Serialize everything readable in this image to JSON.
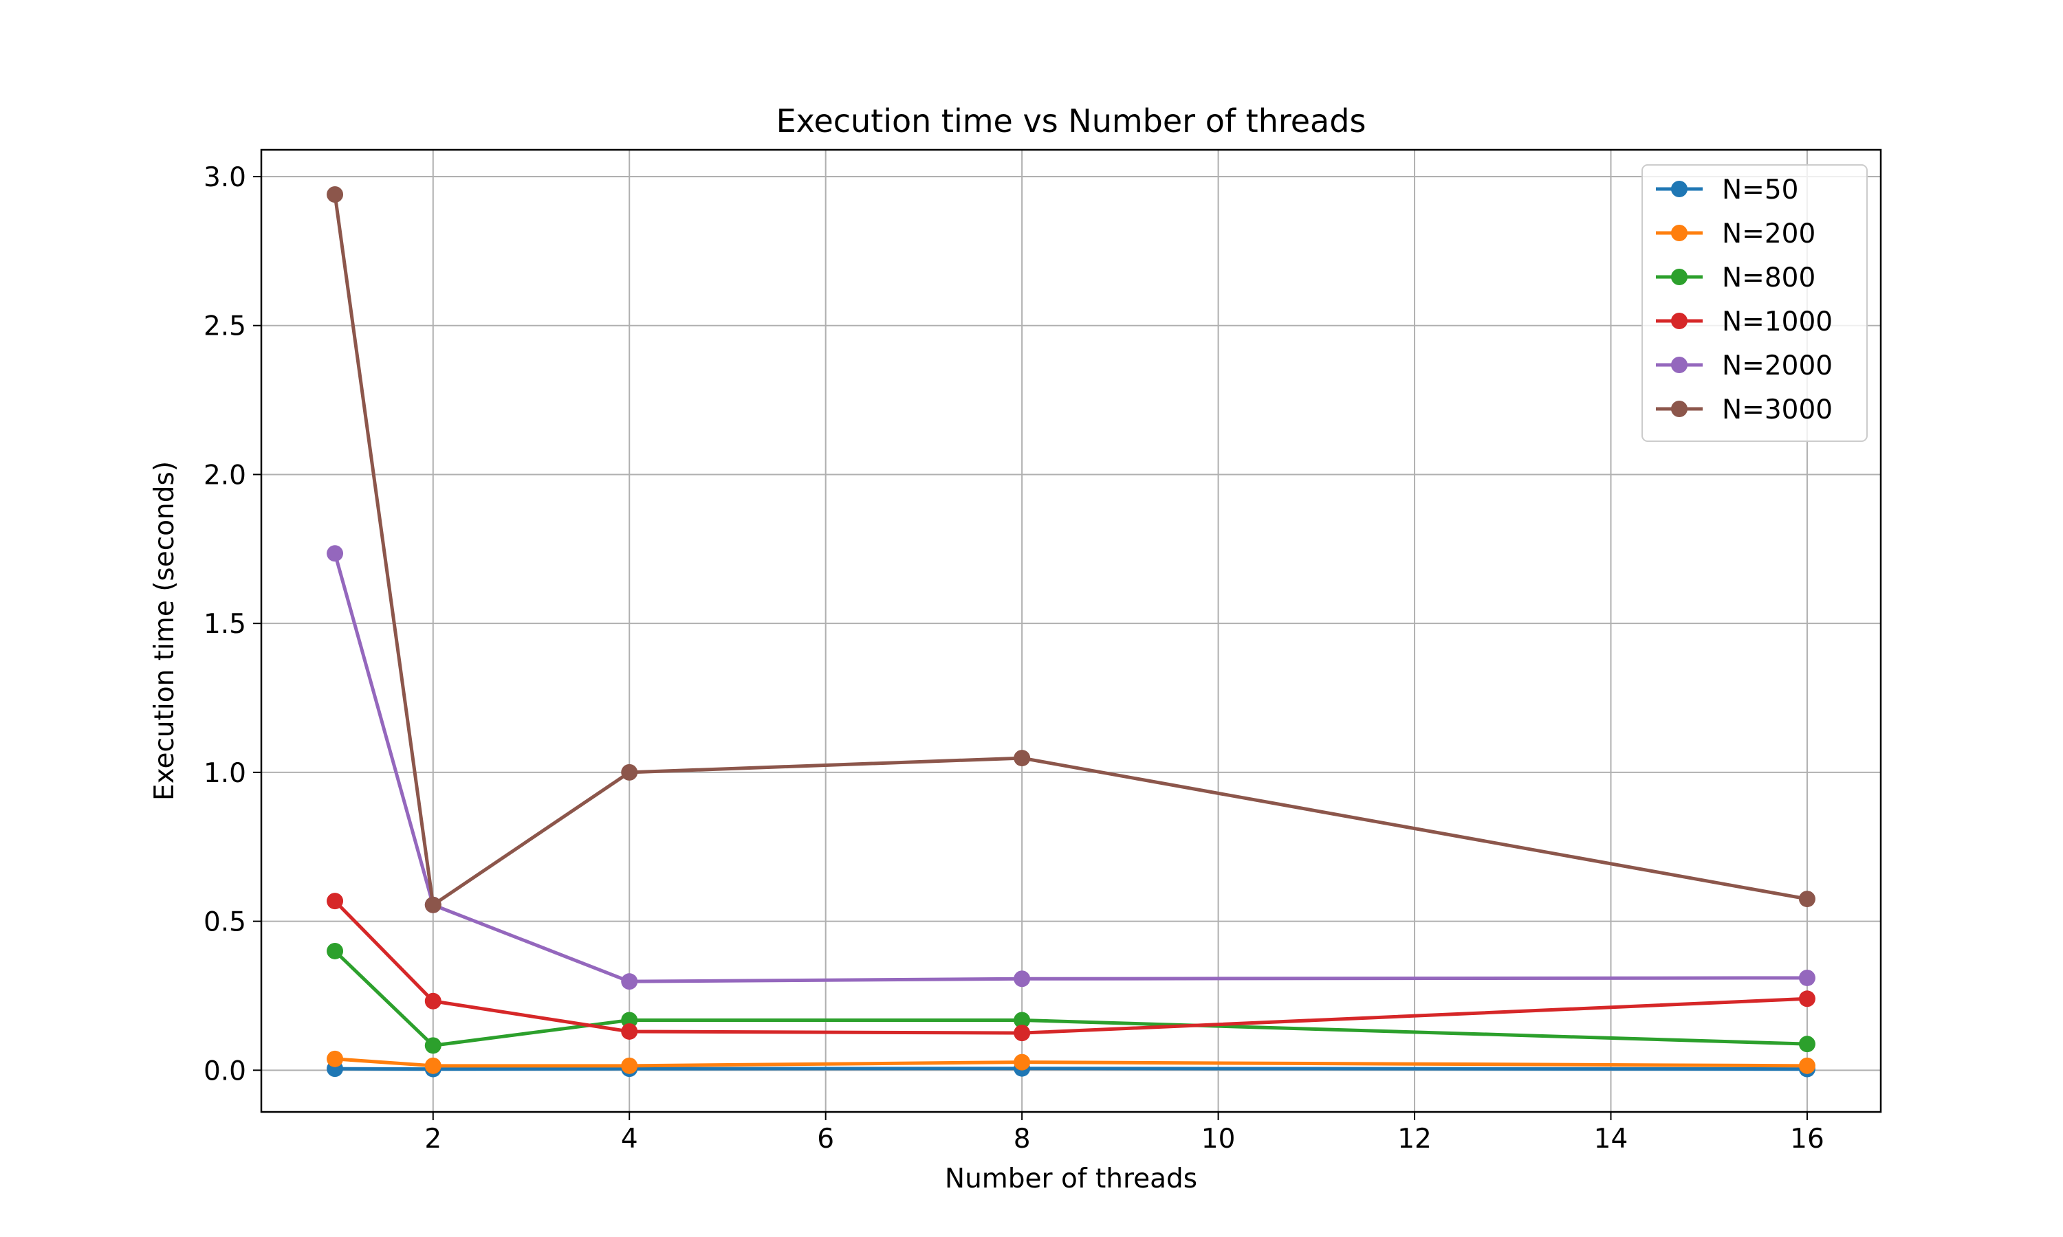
{
  "chart_data": {
    "type": "line",
    "title": "Execution time vs Number of threads",
    "xlabel": "Number of threads",
    "ylabel": "Execution time (seconds)",
    "xlim": [
      0.25,
      16.75
    ],
    "ylim": [
      -0.14,
      3.09
    ],
    "xticks": [
      2,
      4,
      6,
      8,
      10,
      12,
      14,
      16
    ],
    "yticks": [
      0.0,
      0.5,
      1.0,
      1.5,
      2.0,
      2.5,
      3.0
    ],
    "ytick_labels": [
      "0.0",
      "0.5",
      "1.0",
      "1.5",
      "2.0",
      "2.5",
      "3.0"
    ],
    "grid": true,
    "legend_position": "top-right",
    "x": [
      1,
      2,
      4,
      8,
      16
    ],
    "series": [
      {
        "name": "N=50",
        "color": "#1f77b4",
        "values": [
          0.005,
          0.004,
          0.005,
          0.006,
          0.004
        ]
      },
      {
        "name": "N=200",
        "color": "#ff7f0e",
        "values": [
          0.038,
          0.015,
          0.015,
          0.027,
          0.015
        ]
      },
      {
        "name": "N=800",
        "color": "#2ca02c",
        "values": [
          0.4,
          0.083,
          0.168,
          0.168,
          0.088
        ]
      },
      {
        "name": "N=1000",
        "color": "#d62728",
        "values": [
          0.568,
          0.232,
          0.13,
          0.125,
          0.24
        ]
      },
      {
        "name": "N=2000",
        "color": "#9467bd",
        "values": [
          1.735,
          0.555,
          0.298,
          0.307,
          0.31
        ]
      },
      {
        "name": "N=3000",
        "color": "#8c564b",
        "values": [
          2.94,
          0.555,
          1.0,
          1.048,
          0.575
        ]
      }
    ]
  }
}
